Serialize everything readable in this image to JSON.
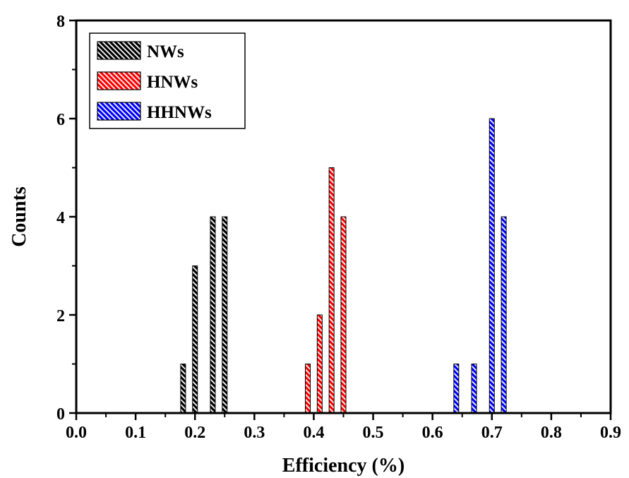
{
  "chart_data": {
    "type": "bar",
    "xlabel": "Efficiency (%)",
    "ylabel": "Counts",
    "xlim": [
      0.0,
      0.9
    ],
    "ylim": [
      0,
      8
    ],
    "x_ticks": [
      "0.0",
      "0.1",
      "0.2",
      "0.3",
      "0.4",
      "0.5",
      "0.6",
      "0.7",
      "0.8",
      "0.9"
    ],
    "y_ticks": [
      "0",
      "2",
      "4",
      "6",
      "8"
    ],
    "grid": false,
    "legend_position": "top-left",
    "series": [
      {
        "name": "NWs",
        "color": "#000000",
        "x": [
          0.18,
          0.2,
          0.23,
          0.25
        ],
        "values": [
          1,
          3,
          4,
          4
        ]
      },
      {
        "name": "HNWs",
        "color": "#ff0000",
        "x": [
          0.39,
          0.41,
          0.43,
          0.45
        ],
        "values": [
          1,
          2,
          5,
          4
        ]
      },
      {
        "name": "HHNWs",
        "color": "#0000ff",
        "x": [
          0.64,
          0.67,
          0.7,
          0.72
        ],
        "values": [
          1,
          1,
          6,
          4
        ]
      }
    ]
  }
}
